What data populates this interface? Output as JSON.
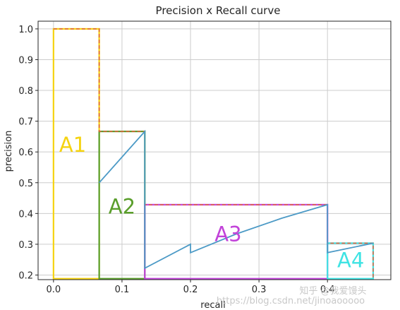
{
  "chart_data": {
    "type": "line",
    "title": "Precision x Recall curve",
    "xlabel": "recall",
    "ylabel": "precision",
    "xlim": [
      -0.0225,
      0.4925
    ],
    "ylim": [
      0.185,
      1.025
    ],
    "xticks": [
      "0.0",
      "0.1",
      "0.2",
      "0.3",
      "0.4"
    ],
    "xtick_values": [
      0.0,
      0.1,
      0.2,
      0.3,
      0.4
    ],
    "yticks": [
      "0.2",
      "0.3",
      "0.4",
      "0.5",
      "0.6",
      "0.7",
      "0.8",
      "0.9",
      "1.0"
    ],
    "ytick_values": [
      0.2,
      0.3,
      0.4,
      0.5,
      0.6,
      0.7,
      0.8,
      0.9,
      1.0
    ],
    "grid": true,
    "series": [
      {
        "color": "#4c9ac6",
        "x": [
          0.0667,
          0.1333,
          0.1333,
          0.2,
          0.2,
          0.2667,
          0.3333,
          0.4,
          0.4,
          0.4667
        ],
        "y": [
          0.5,
          0.6667,
          0.2222,
          0.3,
          0.2727,
          0.3333,
          0.3846,
          0.4286,
          0.2727,
          0.3035
        ]
      }
    ],
    "interpolated": {
      "color": "#e0603a",
      "x": [
        0.0,
        0.0667,
        0.0667,
        0.1333,
        0.1333,
        0.4,
        0.4,
        0.4667,
        0.4667
      ],
      "y": [
        1.0,
        1.0,
        0.6667,
        0.6667,
        0.4286,
        0.4286,
        0.3035,
        0.3035,
        0.188
      ]
    },
    "regions": [
      {
        "label": "A1",
        "x0": 0.0,
        "x1": 0.0667,
        "y": 1.0,
        "color": "#f5d311",
        "label_x": 0.028,
        "label_y": 0.6
      },
      {
        "label": "A2",
        "x0": 0.0667,
        "x1": 0.1333,
        "y": 0.6667,
        "color": "#5a9e2b",
        "label_x": 0.1,
        "label_y": 0.4
      },
      {
        "label": "A3",
        "x0": 0.1333,
        "x1": 0.4,
        "y": 0.4286,
        "color": "#c243d9",
        "label_x": 0.255,
        "label_y": 0.31
      },
      {
        "label": "A4",
        "x0": 0.4,
        "x1": 0.4667,
        "y": 0.3035,
        "color": "#3fe3e3",
        "label_x": 0.434,
        "label_y": 0.225
      }
    ],
    "region_baseline": 0.188
  },
  "watermark": "知乎 @我爱馒头",
  "watermark_url": "https://blog.csdn.net/jinoaooooo",
  "colors": {
    "grid": "#cccccc",
    "axis": "#262626"
  }
}
